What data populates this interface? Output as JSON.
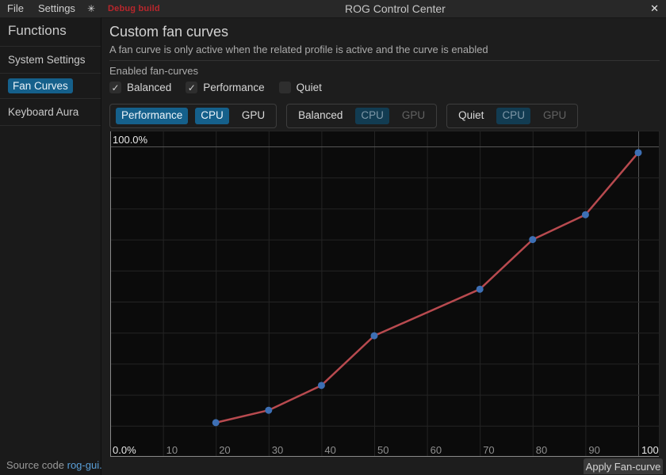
{
  "titlebar": {
    "menus": [
      {
        "label": "File"
      },
      {
        "label": "Settings"
      }
    ],
    "theme_icon_glyph": "✳",
    "debug_label": "Debug build",
    "title": "ROG Control Center",
    "close_glyph": "✕"
  },
  "sidebar": {
    "heading": "Functions",
    "items": [
      {
        "label": "System Settings",
        "active": false
      },
      {
        "label": "Fan Curves",
        "active": true
      },
      {
        "label": "Keyboard Aura",
        "active": false
      }
    ],
    "footer": {
      "text": "Source code ",
      "link_label": "rog-gui."
    }
  },
  "main": {
    "title": "Custom fan curves",
    "subtitle": "A fan curve is only active when the related profile is active and the curve is enabled",
    "enabled_label": "Enabled fan-curves",
    "check_glyph": "✓",
    "profiles": [
      {
        "label": "Balanced",
        "checked": true
      },
      {
        "label": "Performance",
        "checked": true
      },
      {
        "label": "Quiet",
        "checked": false
      }
    ],
    "tab_groups": [
      {
        "profile": {
          "label": "Performance",
          "state": "selected"
        },
        "fans": [
          {
            "label": "CPU",
            "state": "selected"
          },
          {
            "label": "GPU",
            "state": "plain"
          }
        ]
      },
      {
        "profile": {
          "label": "Balanced",
          "state": "plain"
        },
        "fans": [
          {
            "label": "CPU",
            "state": "dim-selected"
          },
          {
            "label": "GPU",
            "state": "dim"
          }
        ]
      },
      {
        "profile": {
          "label": "Quiet",
          "state": "plain"
        },
        "fans": [
          {
            "label": "CPU",
            "state": "dim-selected"
          },
          {
            "label": "GPU",
            "state": "dim"
          }
        ]
      }
    ],
    "apply_button": "Apply Fan-curve"
  },
  "chart_data": {
    "type": "line",
    "title": "",
    "xlabel": "",
    "ylabel": "",
    "x": [
      20,
      30,
      40,
      50,
      70,
      80,
      90,
      100
    ],
    "y": [
      11,
      15,
      23,
      39,
      54,
      70,
      78,
      98
    ],
    "x_ticks": [
      10,
      20,
      30,
      40,
      50,
      60,
      70,
      80,
      90,
      100
    ],
    "highlighted_x_tick": 100,
    "y_grid_step": 10,
    "y_top_label": "100.0%",
    "y_bottom_label": "0.0%",
    "xlim": [
      0,
      104
    ],
    "ylim": [
      0,
      105
    ],
    "grid": true,
    "legend": "none",
    "line_color": "#b84a4f",
    "point_color": "#3d6fb4",
    "grid_color": "#242424",
    "major_line_color": "#565656",
    "axis_color": "#8a8a8a",
    "tick_label_color": "#8f8f8f",
    "bright_label_color": "#e8e8e8"
  },
  "colors": {
    "accent_selected": "#15608b",
    "accent_dim": "#123c52",
    "link": "#5a9fd8",
    "debug_red": "#b9262c"
  }
}
